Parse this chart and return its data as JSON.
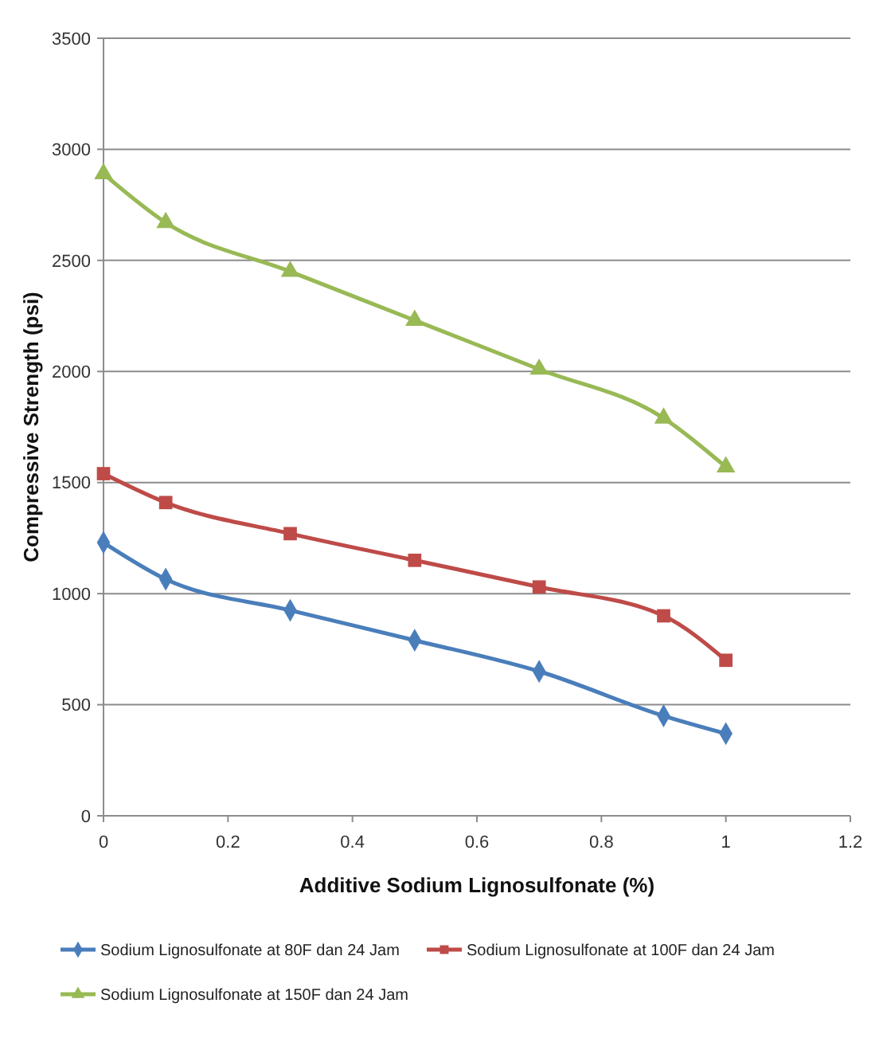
{
  "chart_data": {
    "type": "line",
    "xlabel": "Additive Sodium Lignosulfonate (%)",
    "ylabel": "Compressive Strength (psi)",
    "x": [
      0,
      0.1,
      0.3,
      0.5,
      0.7,
      0.9,
      1
    ],
    "xlim": [
      0,
      1.2
    ],
    "xticks": [
      0,
      0.2,
      0.4,
      0.6,
      0.8,
      1,
      1.2
    ],
    "ylim": [
      0,
      3500
    ],
    "yticks": [
      0,
      500,
      1000,
      1500,
      2000,
      2500,
      3000,
      3500
    ],
    "grid": "y",
    "legend": "bottom",
    "series": [
      {
        "name": "Sodium Lignosulfonate at 80F dan 24 Jam",
        "color": "#4a7ebb",
        "marker": "diamond",
        "values": [
          1230,
          1065,
          925,
          790,
          650,
          450,
          370
        ]
      },
      {
        "name": "Sodium Lignosulfonate at 100F dan 24 Jam",
        "color": "#be4b48",
        "marker": "square",
        "values": [
          1540,
          1410,
          1270,
          1150,
          1030,
          900,
          700
        ]
      },
      {
        "name": "Sodium Lignosulfonate at 150F dan 24 Jam",
        "color": "#98b954",
        "marker": "triangle",
        "values": [
          2890,
          2670,
          2450,
          2230,
          2010,
          1790,
          1570
        ]
      }
    ]
  }
}
